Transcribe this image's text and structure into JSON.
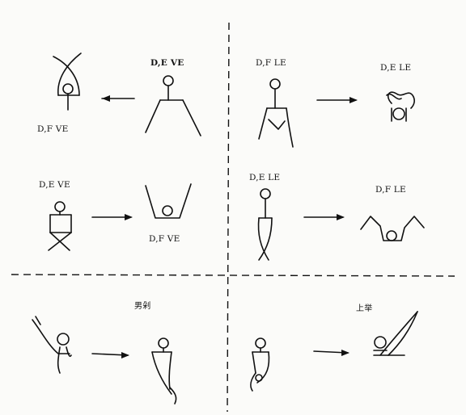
{
  "labels": {
    "l1": "D,E   VE",
    "l2": "D,F   LE",
    "l3": "D,E LE",
    "l4": "D,F   VE",
    "l5": "D,E   VE",
    "l6": "D,E   LE",
    "l7": "D,F   LE",
    "l8": "D,F   VE",
    "l9": "男剁",
    "l10": "上举"
  }
}
